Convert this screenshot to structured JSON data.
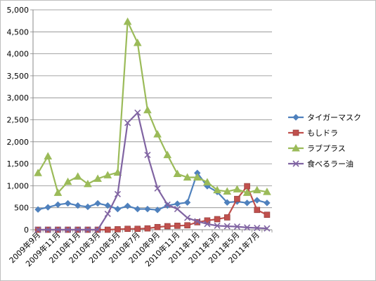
{
  "chart_data": {
    "type": "line",
    "title": "",
    "xlabel": "",
    "ylabel": "",
    "ylim": [
      0,
      5000
    ],
    "yticks": [
      0,
      500,
      1000,
      1500,
      2000,
      2500,
      3000,
      3500,
      4000,
      4500,
      5000
    ],
    "ytick_labels": [
      "0",
      "500",
      "1,000",
      "1,500",
      "2,000",
      "2,500",
      "3,000",
      "3,500",
      "4,000",
      "4,500",
      "5,000"
    ],
    "grid": "horizontal",
    "legend": "right",
    "x": [
      "2009年9月",
      "2009年10月",
      "2009年11月",
      "2009年12月",
      "2010年1月",
      "2010年2月",
      "2010年3月",
      "2010年4月",
      "2010年5月",
      "2010年6月",
      "2010年7月",
      "2010年8月",
      "2010年9月",
      "2010年10月",
      "2010年11月",
      "2010年12月",
      "2011年1月",
      "2011年2月",
      "2011年3月",
      "2011年4月",
      "2011年5月",
      "2011年6月",
      "2011年7月",
      "2011年8月"
    ],
    "xtick_labels": [
      "2009年9月",
      "2009年11月",
      "2010年1月",
      "2010年3月",
      "2010年5月",
      "2010年7月",
      "2010年9月",
      "2010年11月",
      "2011年1月",
      "2011年3月",
      "2011年5月",
      "2011年7月"
    ],
    "series": [
      {
        "name": "タイガーマスク",
        "color": "#4f81bd",
        "marker": "diamond",
        "values": [
          460,
          510,
          570,
          600,
          550,
          520,
          600,
          550,
          470,
          540,
          470,
          470,
          450,
          550,
          590,
          620,
          1290,
          990,
          860,
          620,
          640,
          610,
          670,
          610
        ]
      },
      {
        "name": "もしドラ",
        "color": "#c0504d",
        "marker": "square",
        "values": [
          0,
          0,
          0,
          0,
          0,
          0,
          0,
          0,
          10,
          20,
          20,
          30,
          60,
          80,
          90,
          100,
          170,
          210,
          240,
          280,
          700,
          990,
          450,
          340
        ]
      },
      {
        "name": "ラブプラス",
        "color": "#9bbb59",
        "marker": "triangle",
        "values": [
          1290,
          1670,
          840,
          1090,
          1210,
          1040,
          1160,
          1240,
          1300,
          4730,
          4250,
          2720,
          2170,
          1700,
          1270,
          1190,
          1190,
          1080,
          900,
          870,
          920,
          840,
          900,
          860
        ]
      },
      {
        "name": "食べるラー油",
        "color": "#8064a2",
        "marker": "x",
        "values": [
          0,
          0,
          0,
          0,
          0,
          0,
          0,
          360,
          810,
          2430,
          2660,
          1700,
          940,
          570,
          470,
          270,
          190,
          130,
          90,
          80,
          70,
          50,
          40,
          30
        ]
      }
    ]
  }
}
